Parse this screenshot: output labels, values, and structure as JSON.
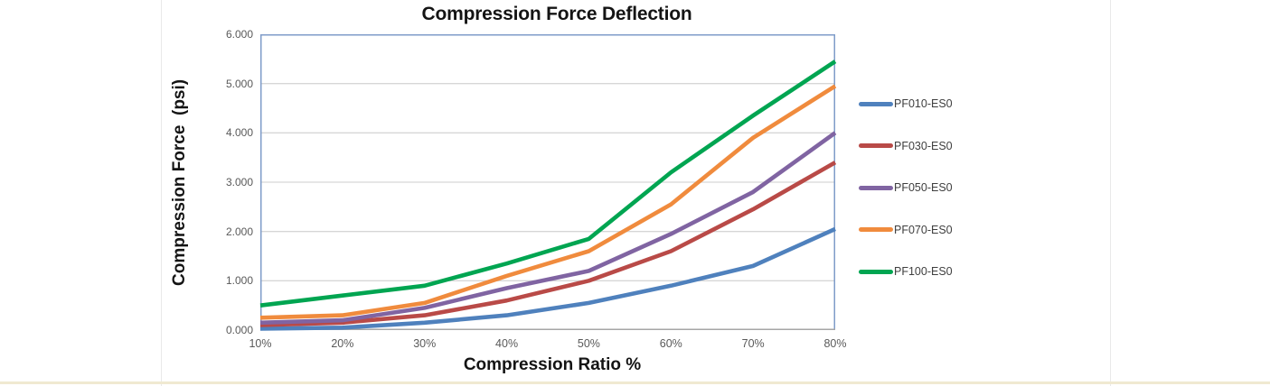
{
  "chart_data": {
    "type": "line",
    "title": "Compression Force Deflection",
    "xlabel": "Compression Ratio %",
    "ylabel": "Compression Force  (psi)",
    "categories": [
      "10%",
      "20%",
      "30%",
      "40%",
      "50%",
      "60%",
      "70%",
      "80%"
    ],
    "y_tick_labels": [
      "0.000",
      "1.000",
      "2.000",
      "3.000",
      "4.000",
      "5.000",
      "6.000"
    ],
    "ylim": [
      0,
      6
    ],
    "grid": true,
    "legend_position": "right",
    "series": [
      {
        "name": "PF010-ES0",
        "color": "#4F81BD",
        "values": [
          0.03,
          0.05,
          0.15,
          0.3,
          0.55,
          0.9,
          1.3,
          2.05
        ]
      },
      {
        "name": "PF030-ES0",
        "color": "#B94A47",
        "values": [
          0.1,
          0.15,
          0.3,
          0.6,
          1.0,
          1.6,
          2.45,
          3.4
        ]
      },
      {
        "name": "PF050-ES0",
        "color": "#8064A2",
        "values": [
          0.15,
          0.2,
          0.45,
          0.85,
          1.2,
          1.95,
          2.8,
          4.0
        ]
      },
      {
        "name": "PF070-ES0",
        "color": "#F08B3D",
        "values": [
          0.25,
          0.3,
          0.55,
          1.1,
          1.6,
          2.55,
          3.9,
          4.95
        ]
      },
      {
        "name": "PF100-ES0",
        "color": "#00A551",
        "values": [
          0.5,
          0.7,
          0.9,
          1.35,
          1.85,
          3.2,
          4.35,
          5.45
        ]
      }
    ],
    "plot_border_color": "#7F9CC9",
    "gridline_color": "#D6D6D6",
    "axis_line_color": "#A6A6A6",
    "tick_label_color": "#595959"
  }
}
